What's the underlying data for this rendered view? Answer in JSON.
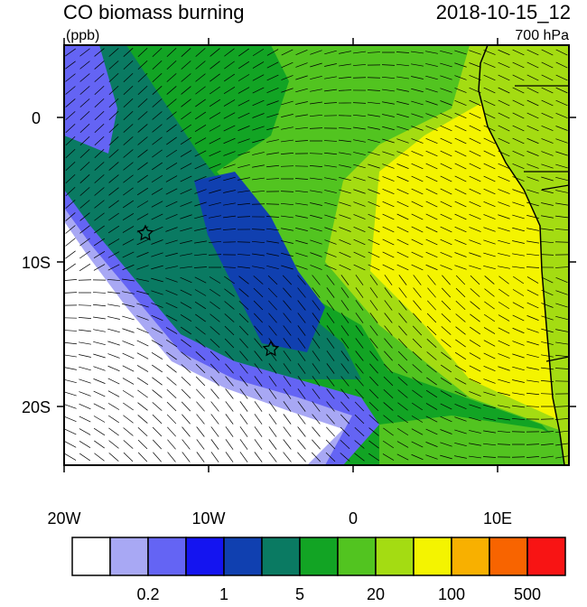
{
  "header": {
    "title": "CO biomass burning",
    "units": "(ppb)",
    "date": "2018-10-15_12",
    "level": "700 hPa"
  },
  "map": {
    "lon_ticks": [
      {
        "value": -20,
        "label": "20W"
      },
      {
        "value": -10,
        "label": "10W"
      },
      {
        "value": 0,
        "label": "0"
      },
      {
        "value": 10,
        "label": "10E"
      }
    ],
    "lat_ticks": [
      {
        "value": 0,
        "label": "0"
      },
      {
        "value": -10,
        "label": "10S"
      },
      {
        "value": -20,
        "label": "20S"
      }
    ]
  },
  "colorbar": {
    "colors": [
      "#ffffff",
      "#a8a8f4",
      "#6464f4",
      "#1414f0",
      "#1040b0",
      "#0a7a62",
      "#12a424",
      "#52c420",
      "#a4dc12",
      "#f4f400",
      "#f8b000",
      "#f86400",
      "#f81414"
    ],
    "labels": [
      0.2,
      1,
      5,
      20,
      100,
      500
    ]
  }
}
